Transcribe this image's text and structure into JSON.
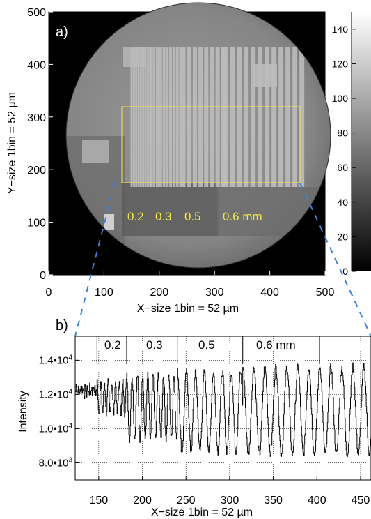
{
  "chart_data": [
    {
      "panel": "a)",
      "type": "heatmap",
      "xlabel": "X−size 1bin = 52 µm",
      "ylabel": "Y−size 1bin = 52 µm",
      "xlim": [
        0,
        500
      ],
      "ylim": [
        0,
        500
      ],
      "xticks": [
        "0",
        "100",
        "200",
        "300",
        "400",
        "500"
      ],
      "yticks": [
        "0",
        "100",
        "200",
        "300",
        "400",
        "500"
      ],
      "colorbar": {
        "range": [
          0,
          150
        ],
        "ticks": [
          "0",
          "20",
          "40",
          "60",
          "80",
          "100",
          "120",
          "140"
        ]
      },
      "annotations": [
        "0.2",
        "0.3",
        "0.5",
        "0.6 mm"
      ],
      "region_box": {
        "x": [
          128,
          465
        ],
        "y": [
          188,
          333
        ]
      },
      "grid": false
    },
    {
      "panel": "b)",
      "type": "line",
      "xlabel": "X−size 1bin = 52 µm",
      "ylabel": "Intensity",
      "xlim": [
        123,
        462
      ],
      "ylim": [
        7000,
        15400
      ],
      "xticks": [
        "150",
        "200",
        "250",
        "300",
        "350",
        "400",
        "450"
      ],
      "yticks": [
        "8.0•103",
        "1.0•104",
        "1.2•104",
        "1.4•104"
      ],
      "annotations": [
        "0.2",
        "0.3",
        "0.5",
        "0.6 mm"
      ],
      "grid": true,
      "series": [
        {
          "period_groups": [
            {
              "label": "0.2",
              "x": [
                148,
                182
              ],
              "period": 4.2,
              "min": 10900,
              "max": 12700
            },
            {
              "label": "0.3",
              "x": [
                182,
                240
              ],
              "period": 6.0,
              "min": 9400,
              "max": 13100
            },
            {
              "label": "0.5",
              "x": [
                240,
                315
              ],
              "period": 10.3,
              "min": 8700,
              "max": 13300
            },
            {
              "label": "0.6 mm",
              "x": [
                315,
                462
              ],
              "period": 12.6,
              "min": 8500,
              "max": 13600
            }
          ],
          "start_level": 12200
        }
      ]
    }
  ]
}
